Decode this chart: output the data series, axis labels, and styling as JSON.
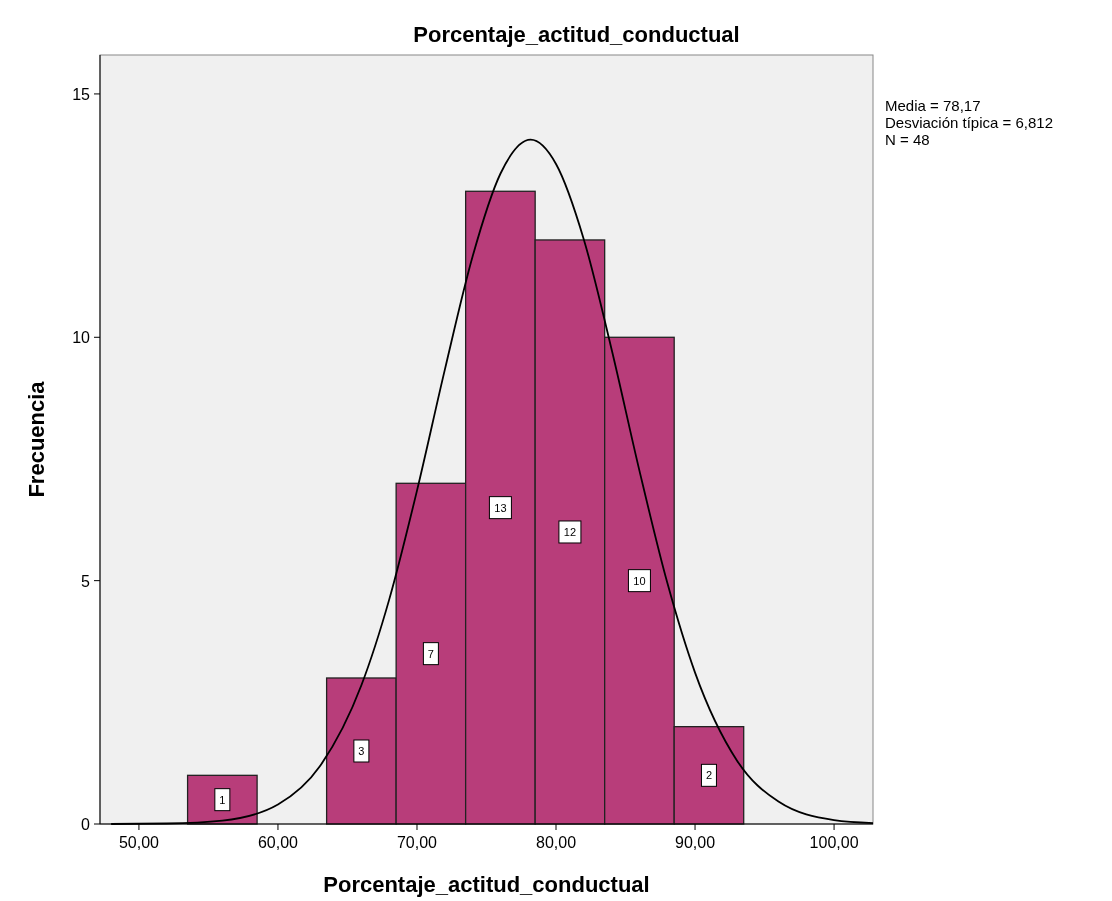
{
  "chart_data": {
    "type": "histogram",
    "title": "Porcentaje_actitud_conductual",
    "xlabel": "Porcentaje_actitud_conductual",
    "ylabel": "Frecuencia",
    "annotations": [
      "Media = 78,17",
      "Desviación típica = 6,812",
      "N = 48"
    ],
    "bins": [
      53.5,
      58.5,
      63.5,
      68.5,
      73.5,
      78.5,
      83.5,
      88.5,
      93.5
    ],
    "values": [
      1,
      0,
      3,
      7,
      13,
      12,
      10,
      2
    ],
    "value_labels": [
      "1",
      null,
      "3",
      "7",
      "13",
      "12",
      "10",
      "2"
    ],
    "color": "#b83d7a",
    "series": [
      {
        "type": "line",
        "color": "#000000",
        "x": [
          48,
          52,
          56,
          60,
          63,
          66,
          68,
          70,
          72,
          74,
          76,
          78.17,
          80,
          82,
          84,
          86,
          88,
          90,
          93,
          96,
          100,
          102.8
        ],
        "values": [
          0,
          0.01,
          0.07,
          0.4,
          1.18,
          2.85,
          4.61,
          6.85,
          9.33,
          11.66,
          13.36,
          14.06,
          13.56,
          12.01,
          9.75,
          7.26,
          4.96,
          3.11,
          1.31,
          0.46,
          0.08,
          0.02
        ]
      }
    ],
    "xlim": [
      47.2,
      102.8
    ],
    "ylim": [
      0,
      15.8
    ],
    "xticks": [
      {
        "value": 50,
        "label": "50,00"
      },
      {
        "value": 60,
        "label": "60,00"
      },
      {
        "value": 70,
        "label": "70,00"
      },
      {
        "value": 80,
        "label": "80,00"
      },
      {
        "value": 90,
        "label": "90,00"
      },
      {
        "value": 100,
        "label": "100,00"
      }
    ],
    "yticks": [
      0,
      5,
      10,
      15
    ],
    "grid": false
  }
}
